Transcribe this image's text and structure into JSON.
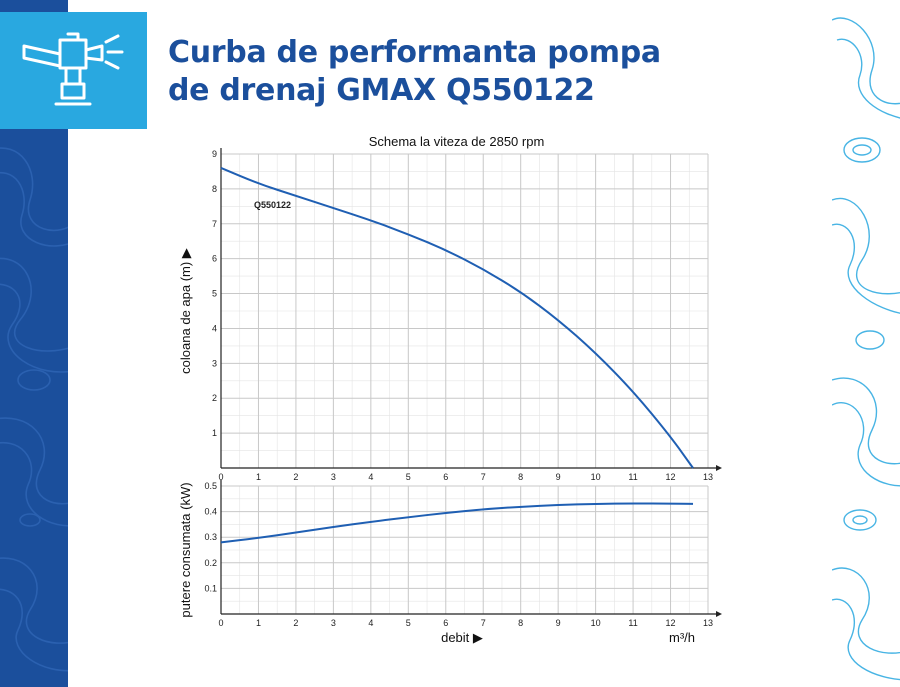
{
  "title": {
    "line1": "Curba de performanta pompa",
    "line2": "de drenaj GMAX Q550122"
  },
  "icon": "pump-icon",
  "colors": {
    "brand_blue": "#1b4f9c",
    "accent_cyan": "#29a8e0",
    "curve": "#1f5fb3",
    "grid_major": "#c8c8c8",
    "grid_minor": "#e4e4e4"
  },
  "chart_data": [
    {
      "type": "line",
      "title": "Schema la viteza de 2850 rpm",
      "xlabel": "",
      "ylabel": "coloana de apa (m) ▶",
      "xlim": [
        0,
        13
      ],
      "ylim": [
        0,
        9
      ],
      "x_ticks": [
        "0",
        "1",
        "2",
        "3",
        "4",
        "5",
        "6",
        "7",
        "8",
        "9",
        "10",
        "11",
        "12",
        "13"
      ],
      "y_ticks": [
        "1",
        "2",
        "3",
        "4",
        "5",
        "6",
        "7",
        "8",
        "9"
      ],
      "grid": true,
      "series": [
        {
          "name": "Q550122",
          "x": [
            0,
            1,
            2,
            3,
            4,
            5,
            6,
            7,
            8,
            9,
            10,
            11,
            12,
            12.6
          ],
          "y": [
            8.6,
            8.15,
            7.8,
            7.45,
            7.1,
            6.7,
            6.25,
            5.7,
            5.05,
            4.25,
            3.3,
            2.2,
            0.9,
            0.0
          ]
        }
      ]
    },
    {
      "type": "line",
      "title": "",
      "xlabel": "debit ▶",
      "xunit": "m³/h",
      "ylabel": "putere consumata (kW)",
      "xlim": [
        0,
        13
      ],
      "ylim": [
        0,
        0.5
      ],
      "x_ticks": [
        "0",
        "1",
        "2",
        "3",
        "4",
        "5",
        "6",
        "7",
        "8",
        "9",
        "10",
        "11",
        "12",
        "13"
      ],
      "y_ticks": [
        "0.1",
        "0.2",
        "0.3",
        "0.4",
        "0.5"
      ],
      "grid": true,
      "series": [
        {
          "x": [
            0,
            1,
            2,
            3,
            4,
            5,
            6,
            7,
            8,
            9,
            10,
            11,
            12,
            12.6
          ],
          "y": [
            0.28,
            0.297,
            0.318,
            0.34,
            0.36,
            0.378,
            0.395,
            0.409,
            0.419,
            0.426,
            0.43,
            0.432,
            0.431,
            0.43
          ]
        }
      ]
    }
  ]
}
